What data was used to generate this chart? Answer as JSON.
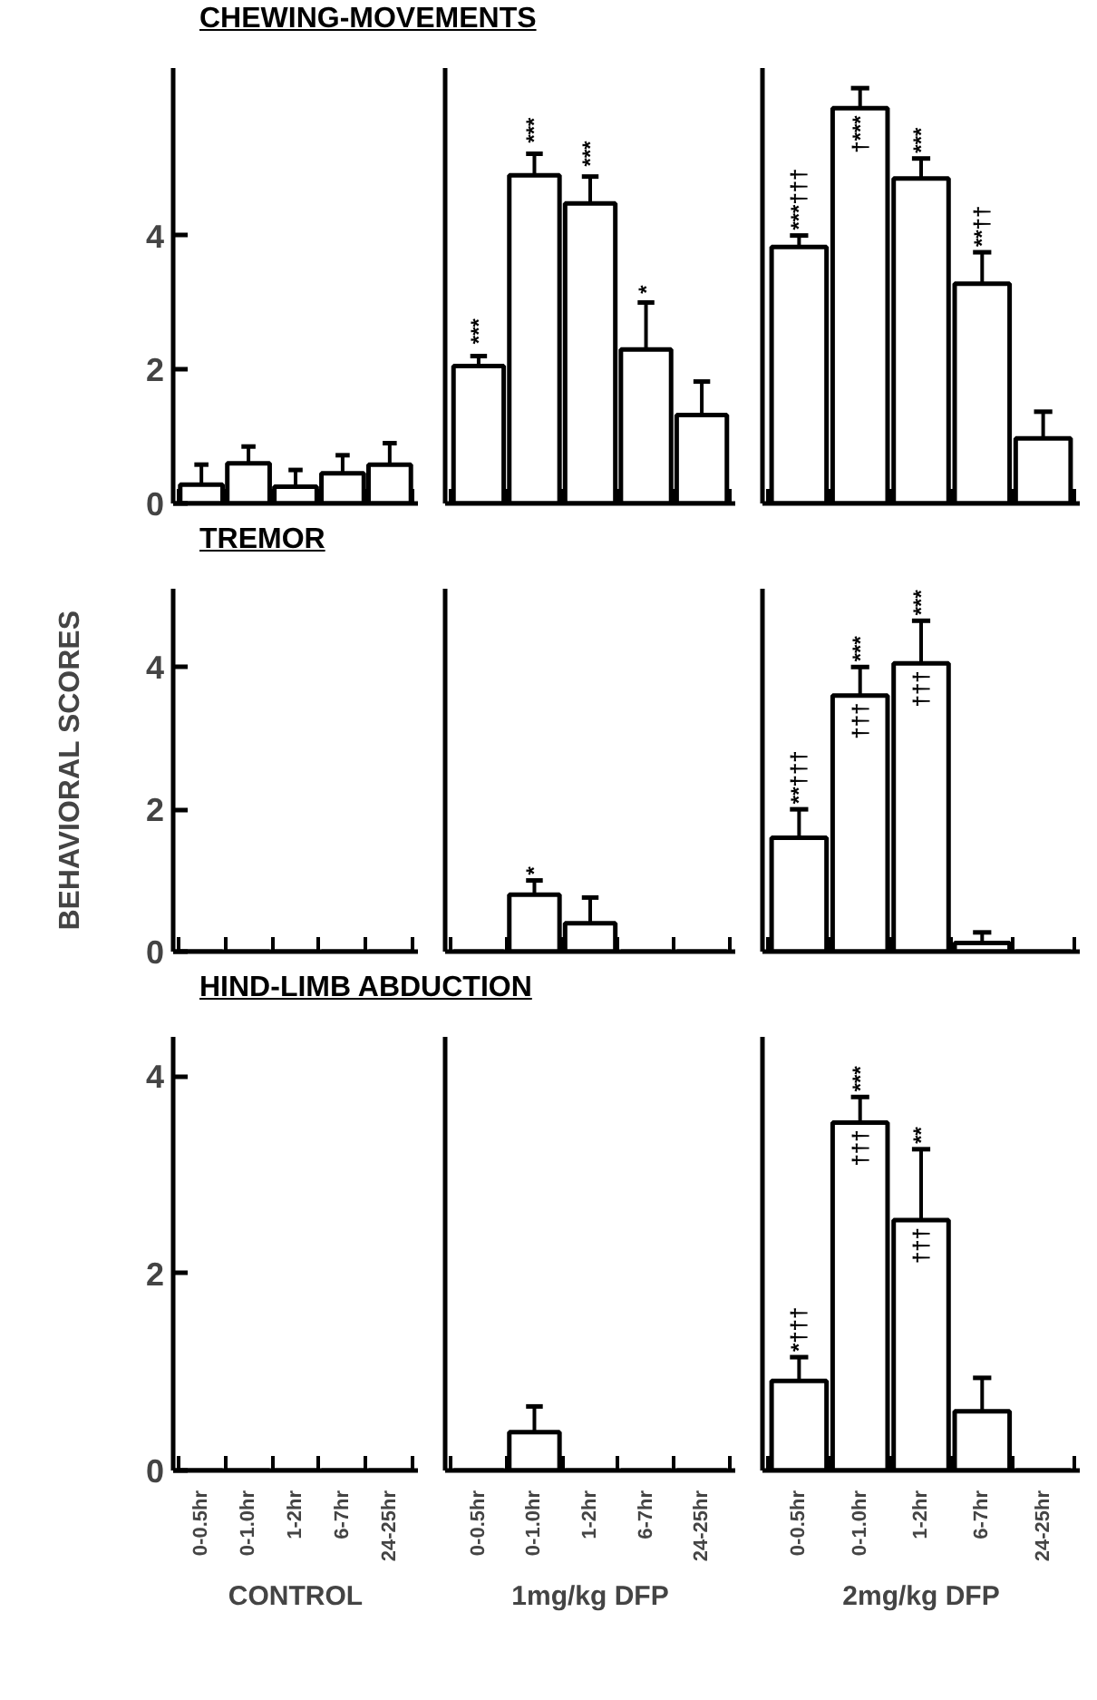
{
  "chart_data": [
    {
      "type": "bar",
      "title": "CHEWING-MOVEMENTS",
      "categories": [
        "0-0.5hr",
        "0-1.0hr",
        "1-2hr",
        "6-7hr",
        "24-25hr"
      ],
      "values": [
        0.28,
        0.6,
        0.25,
        0.45,
        0.58
      ],
      "errors": [
        [
          0.28,
          0.58
        ],
        [
          0.6,
          0.85
        ],
        [
          0.25,
          0.5
        ],
        [
          0.45,
          0.72
        ],
        [
          0.58,
          0.9
        ]
      ],
      "color": "#ffffff",
      "ylim": [
        0,
        6.5
      ],
      "yticks": [
        0,
        2,
        4
      ],
      "tick_labels": "y"
    },
    {
      "type": "bar",
      "categories": [
        "0-0.5hr",
        "0-1.0hr",
        "1-2hr",
        "6-7hr",
        "24-25hr"
      ],
      "values": [
        2.05,
        4.9,
        4.48,
        2.3,
        1.32
      ],
      "errors": [
        [
          2.05,
          2.2
        ],
        [
          4.9,
          5.22
        ],
        [
          4.48,
          4.88
        ],
        [
          2.3,
          3.0
        ],
        [
          1.32,
          1.82
        ]
      ],
      "color": "#ffffff",
      "ylim": [
        0,
        6.5
      ],
      "tick_labels": false,
      "annotations": [
        {
          "text": "***",
          "x": "0-0.5hr",
          "y": 2.3
        },
        {
          "text": "***",
          "x": "0-1.0hr",
          "y": 5.3
        },
        {
          "text": "***",
          "x": "1-2hr",
          "y": 4.95
        },
        {
          "text": "*",
          "x": "6-7hr",
          "y": 3.05
        }
      ]
    },
    {
      "type": "bar",
      "categories": [
        "0-0.5hr",
        "0-1.0hr",
        "1-2hr",
        "6-7hr",
        "24-25hr"
      ],
      "values": [
        3.83,
        5.9,
        4.85,
        3.28,
        0.97
      ],
      "errors": [
        [
          3.83,
          4.0
        ],
        [
          5.9,
          6.2
        ],
        [
          4.85,
          5.15
        ],
        [
          3.28,
          3.75
        ],
        [
          0.97,
          1.37
        ]
      ],
      "color": "#ffffff",
      "ylim": [
        0,
        6.5
      ],
      "tick_labels": false,
      "annotations": [
        {
          "text": "***†††",
          "x": "0-0.5hr",
          "y": 4.0
        },
        {
          "text": "†***",
          "x": "0-1.0hr",
          "y": 5.9
        },
        {
          "text": "***",
          "x": "1-2hr",
          "y": 5.15
        },
        {
          "text": "**††",
          "x": "6-7hr",
          "y": 3.75
        }
      ]
    },
    {
      "type": "bar",
      "title": "TREMOR",
      "ylabel": "BEHAVIORAL SCORES",
      "categories": [
        "0-0.5hr",
        "0-1.0hr",
        "1-2hr",
        "6-7hr",
        "24-25hr"
      ],
      "values": [
        0,
        0,
        0,
        0,
        0
      ],
      "color": "#ffffff",
      "ylim": [
        0,
        5.1
      ],
      "yticks": [
        0,
        2,
        4
      ],
      "tick_labels": "y"
    },
    {
      "type": "bar",
      "categories": [
        "0-0.5hr",
        "0-1.0hr",
        "1-2hr",
        "6-7hr",
        "24-25hr"
      ],
      "values": [
        0,
        0.8,
        0.4,
        0,
        0
      ],
      "errors": [
        null,
        [
          0.8,
          1.0
        ],
        [
          0.4,
          0.76
        ],
        null,
        null
      ],
      "color": "#ffffff",
      "ylim": [
        0,
        5.1
      ],
      "tick_labels": false,
      "annotations": [
        {
          "text": "*",
          "x": "0-1.0hr",
          "y": 1.0
        }
      ]
    },
    {
      "type": "bar",
      "categories": [
        "0-0.5hr",
        "0-1.0hr",
        "1-2hr",
        "6-7hr",
        "24-25hr"
      ],
      "values": [
        1.6,
        3.6,
        4.05,
        0.12,
        0
      ],
      "errors": [
        [
          1.6,
          2.0
        ],
        [
          3.6,
          4.0
        ],
        [
          4.05,
          4.65
        ],
        [
          0.12,
          0.27
        ],
        null
      ],
      "color": "#ffffff",
      "ylim": [
        0,
        5.1
      ],
      "tick_labels": false,
      "annotations": [
        {
          "text": "**†††",
          "x": "0-0.5hr",
          "y": 2.0
        },
        {
          "text": "***",
          "x": "0-1.0hr",
          "y": 4.0
        },
        {
          "text": "†††",
          "x": "0-1.0hr",
          "y": 3.6
        },
        {
          "text": "***",
          "x": "1-2hr",
          "y": 4.65
        },
        {
          "text": "†††",
          "x": "1-2hr",
          "y": 4.05
        }
      ]
    },
    {
      "type": "bar",
      "title": "HIND-LIMB ABDUCTION",
      "xlabel": "CONTROL",
      "categories": [
        "0-0.5hr",
        "0-1.0hr",
        "1-2hr",
        "6-7hr",
        "24-25hr"
      ],
      "values": [
        0,
        0,
        0,
        0,
        0
      ],
      "color": "#ffffff",
      "ylim": [
        0,
        4.4
      ],
      "yticks": [
        0,
        2,
        4
      ]
    },
    {
      "type": "bar",
      "xlabel": "1mg/kg DFP",
      "categories": [
        "0-0.5hr",
        "0-1.0hr",
        "1-2hr",
        "6-7hr",
        "24-25hr"
      ],
      "values": [
        0,
        0.39,
        0,
        0,
        0
      ],
      "errors": [
        null,
        [
          0.39,
          0.65
        ],
        null,
        null,
        null
      ],
      "color": "#ffffff",
      "ylim": [
        0,
        4.4
      ],
      "tick_labels": "x"
    },
    {
      "type": "bar",
      "xlabel": "2mg/kg DFP",
      "categories": [
        "0-0.5hr",
        "0-1.0hr",
        "1-2hr",
        "6-7hr",
        "24-25hr"
      ],
      "values": [
        0.91,
        3.53,
        2.54,
        0.6,
        0
      ],
      "errors": [
        [
          0.91,
          1.15
        ],
        [
          3.53,
          3.79
        ],
        [
          2.54,
          3.26
        ],
        [
          0.6,
          0.94
        ],
        null
      ],
      "color": "#ffffff",
      "ylim": [
        0,
        4.4
      ],
      "tick_labels": "x",
      "annotations": [
        {
          "text": "*†††",
          "x": "0-0.5hr",
          "y": 1.15
        },
        {
          "text": "***",
          "x": "0-1.0hr",
          "y": 3.79
        },
        {
          "text": "†††",
          "x": "0-1.0hr",
          "y": 3.53
        },
        {
          "text": "**",
          "x": "1-2hr",
          "y": 3.26
        },
        {
          "text": "†††",
          "x": "1-2hr",
          "y": 2.54
        }
      ]
    }
  ]
}
